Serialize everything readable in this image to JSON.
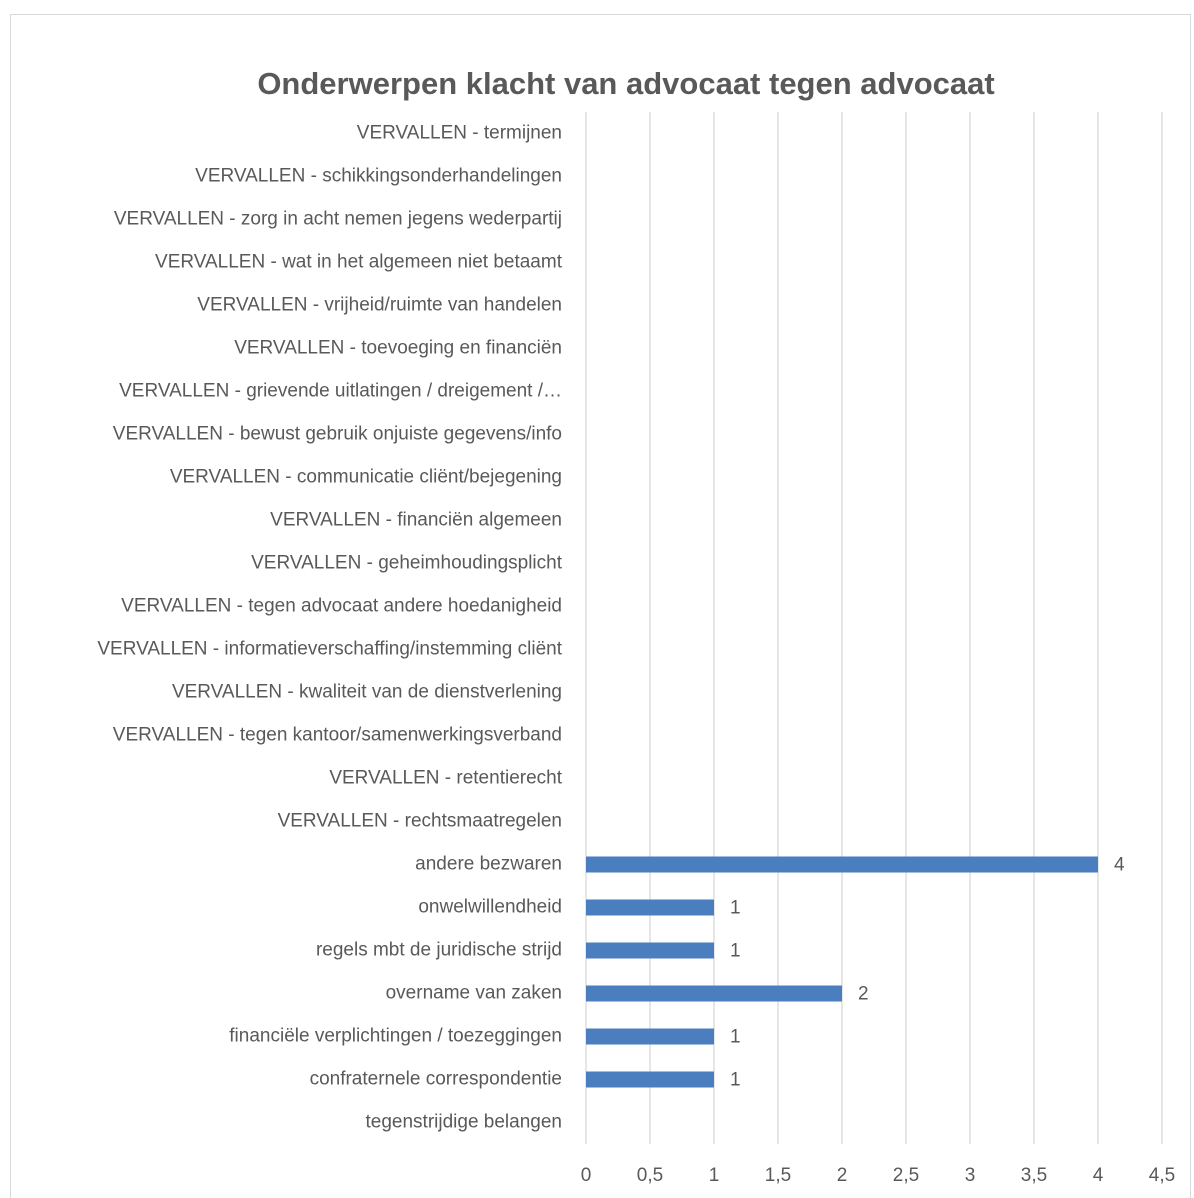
{
  "chart_data": {
    "type": "hbar",
    "title": "Onderwerpen klacht van advocaat tegen advocaat",
    "categories": [
      "VERVALLEN - termijnen",
      "VERVALLEN - schikkingsonderhandelingen",
      "VERVALLEN - zorg in acht nemen jegens wederpartij",
      "VERVALLEN - wat in het algemeen niet betaamt",
      "VERVALLEN - vrijheid/ruimte van handelen",
      "VERVALLEN - toevoeging en financiën",
      "VERVALLEN - grievende uitlatingen / dreigement /…",
      "VERVALLEN - bewust gebruik onjuiste gegevens/info",
      "VERVALLEN - communicatie cliënt/bejegening",
      "VERVALLEN - financiën algemeen",
      "VERVALLEN - geheimhoudingsplicht",
      "VERVALLEN - tegen advocaat andere hoedanigheid",
      "VERVALLEN - informatieverschaffing/instemming cliënt",
      "VERVALLEN - kwaliteit van de dienstverlening",
      "VERVALLEN - tegen kantoor/samenwerkingsverband",
      "VERVALLEN - retentierecht",
      "VERVALLEN - rechtsmaatregelen",
      "andere bezwaren",
      "onwelwillendheid",
      "regels mbt de juridische strijd",
      "overname van zaken",
      "financiële verplichtingen / toezeggingen",
      "confraternele correspondentie",
      "tegenstrijdige belangen"
    ],
    "values": [
      null,
      null,
      null,
      null,
      null,
      null,
      null,
      null,
      null,
      null,
      null,
      null,
      null,
      null,
      null,
      null,
      null,
      4,
      1,
      1,
      2,
      1,
      1,
      null
    ],
    "color": "#4a7ebf",
    "xlim": [
      0,
      4.5
    ],
    "xticks": [
      0,
      {
        "value": 0.5,
        "label": "0,5"
      },
      1,
      {
        "value": 1.5,
        "label": "1,5"
      },
      2,
      {
        "value": 2.5,
        "label": "2,5"
      },
      3,
      {
        "value": 3.5,
        "label": "3,5"
      },
      4,
      {
        "value": 4.5,
        "label": "4,5"
      }
    ],
    "grid": true
  }
}
